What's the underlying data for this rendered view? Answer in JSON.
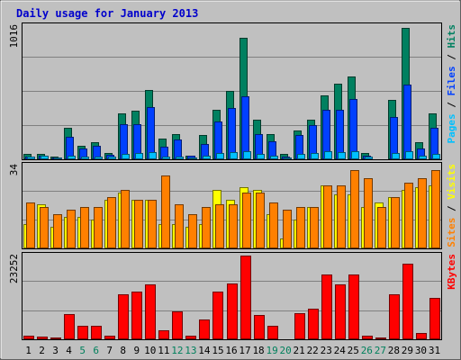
{
  "chart_data": {
    "type": "bar",
    "title": "Daily usage for January 2013",
    "x_labels": [
      "1",
      "2",
      "3",
      "4",
      "5",
      "6",
      "7",
      "8",
      "9",
      "10",
      "11",
      "12",
      "13",
      "14",
      "15",
      "16",
      "17",
      "18",
      "19",
      "20",
      "21",
      "22",
      "23",
      "24",
      "25",
      "26",
      "27",
      "28",
      "29",
      "30",
      "31"
    ],
    "weekend_days": [
      5,
      6,
      12,
      13,
      19,
      20,
      26,
      27
    ],
    "colors": {
      "background": "#c0c0c0",
      "title": "#0000cc",
      "hits": "#008060",
      "files": "#0040ff",
      "pages": "#00c0ff",
      "visits": "#ffff00",
      "sites": "#ff8000",
      "kbytes": "#ff0000",
      "weekend_label": "#00805c"
    },
    "panels": [
      {
        "id": "requests",
        "max_label": "1016",
        "ymax": 1016,
        "legend": [
          {
            "text": "Pages",
            "color": "#00c0ff"
          },
          {
            "text": "Files",
            "color": "#0040ff"
          },
          {
            "text": "Hits",
            "color": "#008060"
          }
        ],
        "separator": " / ",
        "series": [
          {
            "name": "Hits",
            "color": "#008060",
            "values": [
              38,
              38,
              20,
              240,
              100,
              130,
              45,
              350,
              370,
              530,
              160,
              190,
              30,
              185,
              380,
              520,
              930,
              300,
              190,
              40,
              220,
              300,
              490,
              580,
              630,
              50,
              10,
              450,
              1000,
              130,
              350
            ]
          },
          {
            "name": "Files",
            "color": "#0040ff",
            "values": [
              20,
              30,
              15,
              175,
              85,
              105,
              35,
              270,
              265,
              400,
              95,
              150,
              25,
              120,
              290,
              390,
              480,
              190,
              140,
              20,
              185,
              260,
              380,
              380,
              460,
              30,
              5,
              320,
              570,
              80,
              240
            ]
          },
          {
            "name": "Pages",
            "color": "#00c0ff",
            "values": [
              20,
              25,
              12,
              30,
              20,
              22,
              20,
              40,
              45,
              52,
              20,
              20,
              12,
              30,
              50,
              55,
              60,
              40,
              30,
              12,
              38,
              48,
              60,
              52,
              60,
              22,
              5,
              45,
              62,
              25,
              38
            ]
          }
        ]
      },
      {
        "id": "visits",
        "max_label": "34",
        "ymax": 34,
        "legend": [
          {
            "text": "Sites",
            "color": "#ff8000"
          },
          {
            "text": "Visits",
            "color": "#ffff00"
          }
        ],
        "separator": " / ",
        "series": [
          {
            "name": "Visits",
            "color": "#ffff00",
            "values": [
              10,
              18,
              9,
              13,
              13,
              12,
              20,
              23,
              20,
              20,
              10,
              10,
              9,
              10,
              24,
              20,
              25,
              24,
              14,
              4,
              12,
              17,
              26,
              22,
              22,
              17,
              19,
              21,
              24,
              25,
              26
            ]
          },
          {
            "name": "Sites",
            "color": "#ff8000",
            "values": [
              19,
              17,
              14,
              16,
              17,
              17,
              21,
              24,
              20,
              20,
              30,
              18,
              14,
              17,
              18,
              18,
              23,
              23,
              19,
              16,
              17,
              17,
              26,
              26,
              32,
              29,
              17,
              21,
              27,
              29,
              32
            ]
          }
        ]
      },
      {
        "id": "kbytes",
        "max_label": "23252",
        "ymax": 23252,
        "legend": [
          {
            "text": "KBytes",
            "color": "#ff0000"
          }
        ],
        "separator": " / ",
        "series": [
          {
            "name": "KBytes",
            "color": "#ff0000",
            "values": [
              1000,
              800,
              500,
              7000,
              3800,
              3800,
              1100,
              12500,
              13300,
              15300,
              2600,
              7800,
              1100,
              5500,
              13300,
              15500,
              23252,
              6800,
              3800,
              300,
              7200,
              8600,
              18000,
              15300,
              18000,
              1100,
              600,
              12500,
              21000,
              1700,
              11600
            ]
          }
        ]
      }
    ]
  }
}
